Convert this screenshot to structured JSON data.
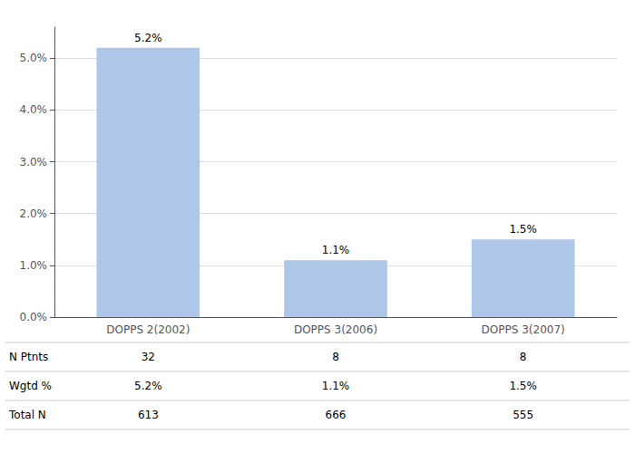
{
  "chart_data": {
    "type": "bar",
    "categories": [
      "DOPPS 2(2002)",
      "DOPPS 3(2006)",
      "DOPPS 3(2007)"
    ],
    "values": [
      5.2,
      1.1,
      1.5
    ],
    "value_labels": [
      "5.2%",
      "1.1%",
      "1.5%"
    ],
    "data_labels": true,
    "color": "#aec6e8",
    "ylim": [
      0,
      5.6
    ],
    "yticks": [
      {
        "value": 0.0,
        "label": "0.0%"
      },
      {
        "value": 1.0,
        "label": "1.0%"
      },
      {
        "value": 2.0,
        "label": "2.0%"
      },
      {
        "value": 3.0,
        "label": "3.0%"
      },
      {
        "value": 4.0,
        "label": "4.0%"
      },
      {
        "value": 5.0,
        "label": "5.0%"
      }
    ],
    "grid": true,
    "table": {
      "row_labels": [
        "N Ptnts",
        "Wgtd %",
        "Total N"
      ],
      "rows": [
        [
          "32",
          "8",
          "8"
        ],
        [
          "5.2%",
          "1.1%",
          "1.5%"
        ],
        [
          "613",
          "666",
          "555"
        ]
      ]
    }
  }
}
